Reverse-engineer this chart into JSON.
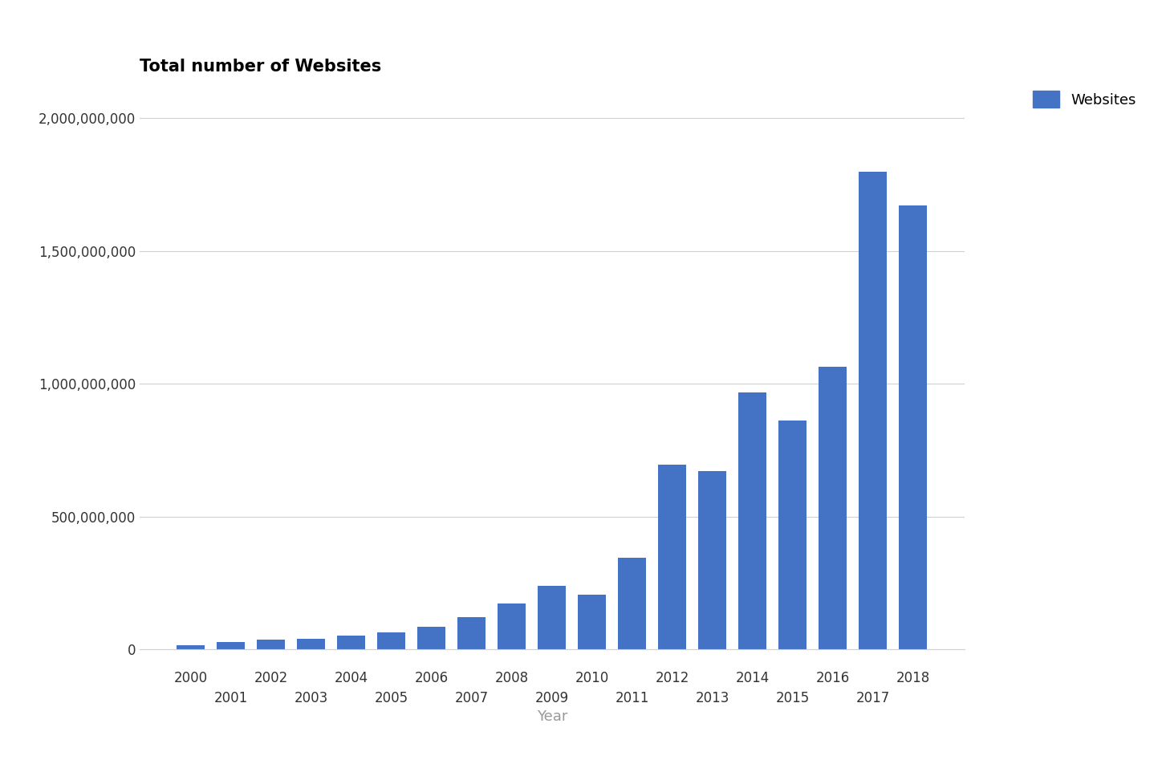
{
  "title": "Total number of Websites",
  "xlabel": "Year",
  "bar_color": "#4472C4",
  "legend_label": "Websites",
  "background_color": "#ffffff",
  "years": [
    2000,
    2001,
    2002,
    2003,
    2004,
    2005,
    2006,
    2007,
    2008,
    2009,
    2010,
    2011,
    2012,
    2013,
    2014,
    2015,
    2016,
    2017,
    2018
  ],
  "values": [
    17000000,
    29000000,
    38000000,
    40000000,
    51000000,
    64000000,
    86000000,
    122000000,
    172000000,
    238000000,
    207000000,
    346000000,
    697000000,
    672000000,
    968000000,
    863000000,
    1065000000,
    1800000000,
    1672000000
  ],
  "ylim": [
    0,
    2100000000
  ],
  "yticks": [
    0,
    500000000,
    1000000000,
    1500000000,
    2000000000
  ],
  "ytick_labels": [
    "0",
    "500,000,000",
    "1,000,000,000",
    "1,500,000,000",
    "2,000,000,000"
  ],
  "title_fontsize": 15,
  "tick_fontsize": 12,
  "axis_label_fontsize": 13,
  "grid_color": "#d0d0d0",
  "text_color": "#333333",
  "legend_fontsize": 13
}
